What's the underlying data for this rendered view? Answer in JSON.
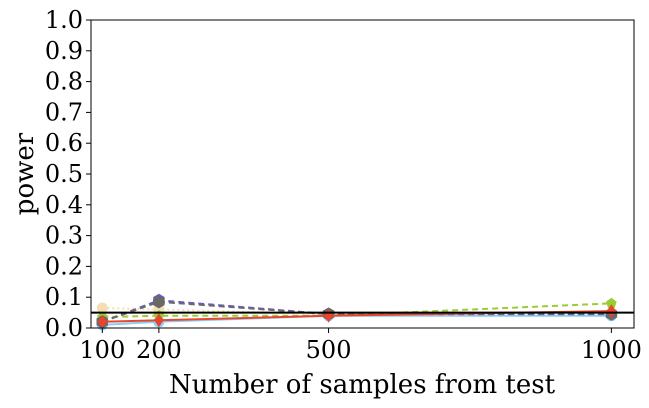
{
  "chart_data": {
    "type": "line",
    "xlabel": "Number of samples from test",
    "ylabel": "power",
    "x": [
      100,
      200,
      500,
      1000
    ],
    "xlim": [
      80,
      1040
    ],
    "ylim": [
      0.0,
      1.0
    ],
    "xticks": [
      100,
      200,
      500,
      1000
    ],
    "yticks": [
      0.0,
      0.1,
      0.2,
      0.3,
      0.4,
      0.5,
      0.6,
      0.7,
      0.8,
      0.9,
      1.0
    ],
    "xtick_labels": [
      "100",
      "200",
      "500",
      "1000"
    ],
    "ytick_labels": [
      "0.0",
      "0.1",
      "0.2",
      "0.3",
      "0.4",
      "0.5",
      "0.6",
      "0.7",
      "0.8",
      "0.9",
      "1.0"
    ],
    "reference_line": {
      "y": 0.05,
      "color": "#000000"
    },
    "grid": false,
    "series": [
      {
        "values": [
          0.065,
          0.06,
          0.045,
          0.05
        ],
        "color": "#f5deb3",
        "dash": "dotted",
        "marker": "circle"
      },
      {
        "values": [
          0.035,
          0.04,
          0.04,
          0.08
        ],
        "color": "#9acd32",
        "dash": "dashed",
        "marker": "pentagon"
      },
      {
        "values": [
          0.01,
          0.02,
          0.04,
          0.04
        ],
        "color": "#87cefa",
        "dash": "solid",
        "marker": "circle"
      },
      {
        "values": [
          0.02,
          0.09,
          0.045,
          0.045
        ],
        "color": "#6a5acd",
        "dash": "dashed",
        "marker": "hexagon"
      },
      {
        "values": [
          0.02,
          0.085,
          0.045,
          0.045
        ],
        "color": "#696969",
        "dash": "dashed",
        "marker": "hexagon"
      },
      {
        "values": [
          0.02,
          0.025,
          0.04,
          0.055
        ],
        "color": "#e8452c",
        "dash": "solid",
        "marker": "diamond"
      }
    ]
  }
}
